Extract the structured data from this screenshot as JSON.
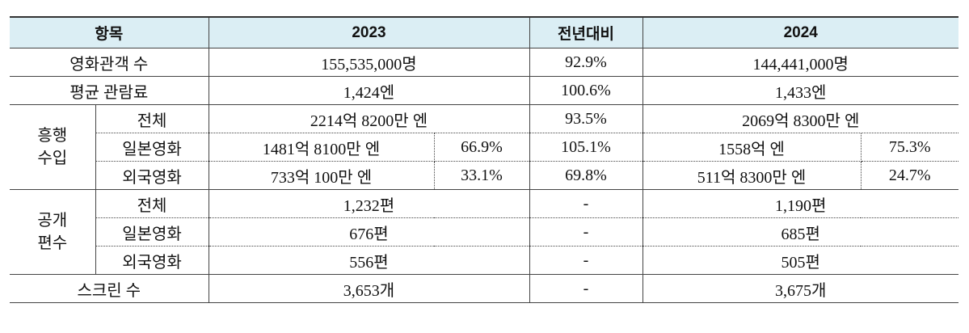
{
  "table": {
    "header": [
      "항목",
      "2023",
      "전년대비",
      "2024"
    ],
    "top_rows": [
      [
        "영화관객 수",
        "155,535,000명",
        "92.9%",
        "144,441,000명"
      ],
      [
        "평균 관람료",
        "1,424엔",
        "100.6%",
        "1,433엔"
      ]
    ],
    "revenue": {
      "label": [
        "흥행",
        "수입"
      ],
      "rows": [
        [
          "전체",
          "2214억 8200만 엔",
          "93.5%",
          "2069억 8300만 엔"
        ],
        [
          "일본영화",
          "1481억 8100만 엔",
          "66.9%",
          "105.1%",
          "1558억 엔",
          "75.3%"
        ],
        [
          "외국영화",
          "733억 100만 엔",
          "33.1%",
          "69.8%",
          "511억 8300만 엔",
          "24.7%"
        ]
      ]
    },
    "releases": {
      "label": [
        "공개",
        "편수"
      ],
      "rows": [
        [
          "전체",
          "1,232편",
          "-",
          "1,190편"
        ],
        [
          "일본영화",
          "676편",
          "-",
          "685편"
        ],
        [
          "외국영화",
          "556편",
          "-",
          "505편"
        ]
      ]
    },
    "bottom_rows": [
      [
        "스크린 수",
        "3,653개",
        "-",
        "3,675개"
      ]
    ]
  }
}
